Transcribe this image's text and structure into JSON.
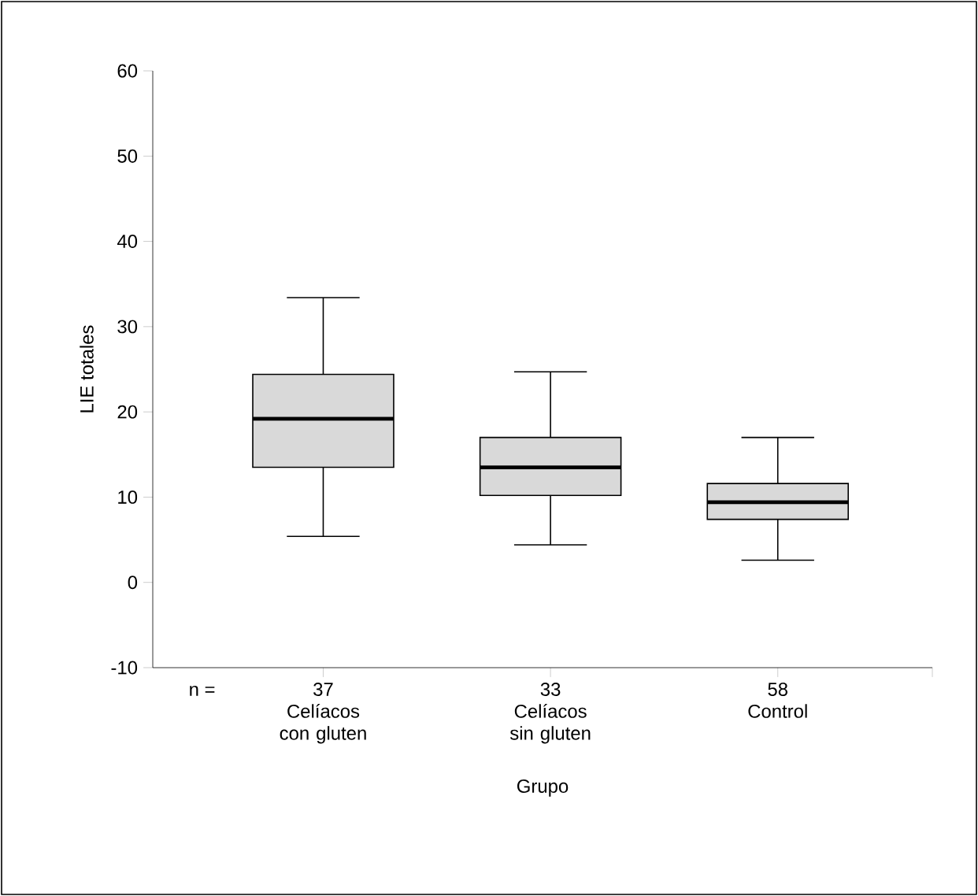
{
  "chart_data": {
    "type": "box",
    "xlabel": "Grupo",
    "ylabel": "LIE totales",
    "categories": [
      "Celíacos con gluten",
      "Celíacos sin gluten",
      "Control"
    ],
    "boxes": [
      {
        "low": 5.4,
        "q1": 13.5,
        "median": 19.2,
        "q3": 24.4,
        "high": 33.4
      },
      {
        "low": 4.4,
        "q1": 10.2,
        "median": 13.5,
        "q3": 17.0,
        "high": 24.7
      },
      {
        "low": 2.6,
        "q1": 7.4,
        "median": 9.4,
        "q3": 11.6,
        "high": 17.0
      }
    ],
    "color": "#d9d9d9",
    "ylim": [
      -10,
      60
    ],
    "yticks": [
      -10,
      0,
      10,
      20,
      30,
      40,
      50,
      60
    ],
    "annotations": [
      "n =",
      "37",
      "33",
      "58"
    ]
  }
}
